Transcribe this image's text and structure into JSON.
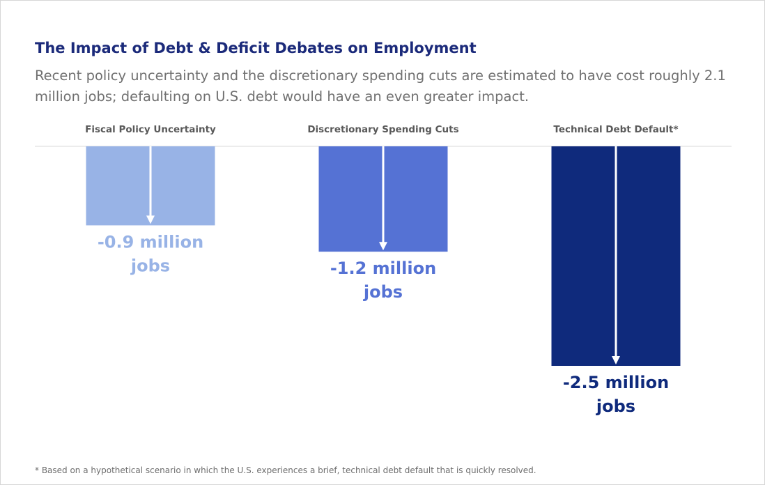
{
  "title": "The Impact of Debt & Deficit Debates on Employment",
  "subtitle": "Recent policy uncertainty and the discretionary spending cuts are estimated to have cost roughly 2.1 million jobs; defaulting on U.S. debt would have an even greater impact.",
  "footnote": "* Based on a hypothetical scenario in which the U.S. experiences a brief, technical debt default that is quickly resolved.",
  "colors": {
    "title": "#1b2a7a",
    "light_blue": "#98b3e6",
    "mid_blue": "#5572d4",
    "dark_blue": "#0f2a7c",
    "arrow": "#ffffff",
    "baseline": "#d9d9d9"
  },
  "chart_data": {
    "type": "bar",
    "orientation": "downward",
    "categories": [
      "Fiscal Policy Uncertainty",
      "Discretionary Spending Cuts",
      "Technical Debt Default*"
    ],
    "values": [
      -0.9,
      -1.2,
      -2.5
    ],
    "value_labels": [
      [
        "-0.9 million",
        "jobs"
      ],
      [
        "-1.2 million",
        "jobs"
      ],
      [
        "-2.5 million",
        "jobs"
      ]
    ],
    "bar_colors": [
      "#98b3e6",
      "#5572d4",
      "#0f2a7c"
    ],
    "ylim": [
      -2.5,
      0
    ],
    "unit": "million jobs",
    "grid": false,
    "legend": "none"
  }
}
